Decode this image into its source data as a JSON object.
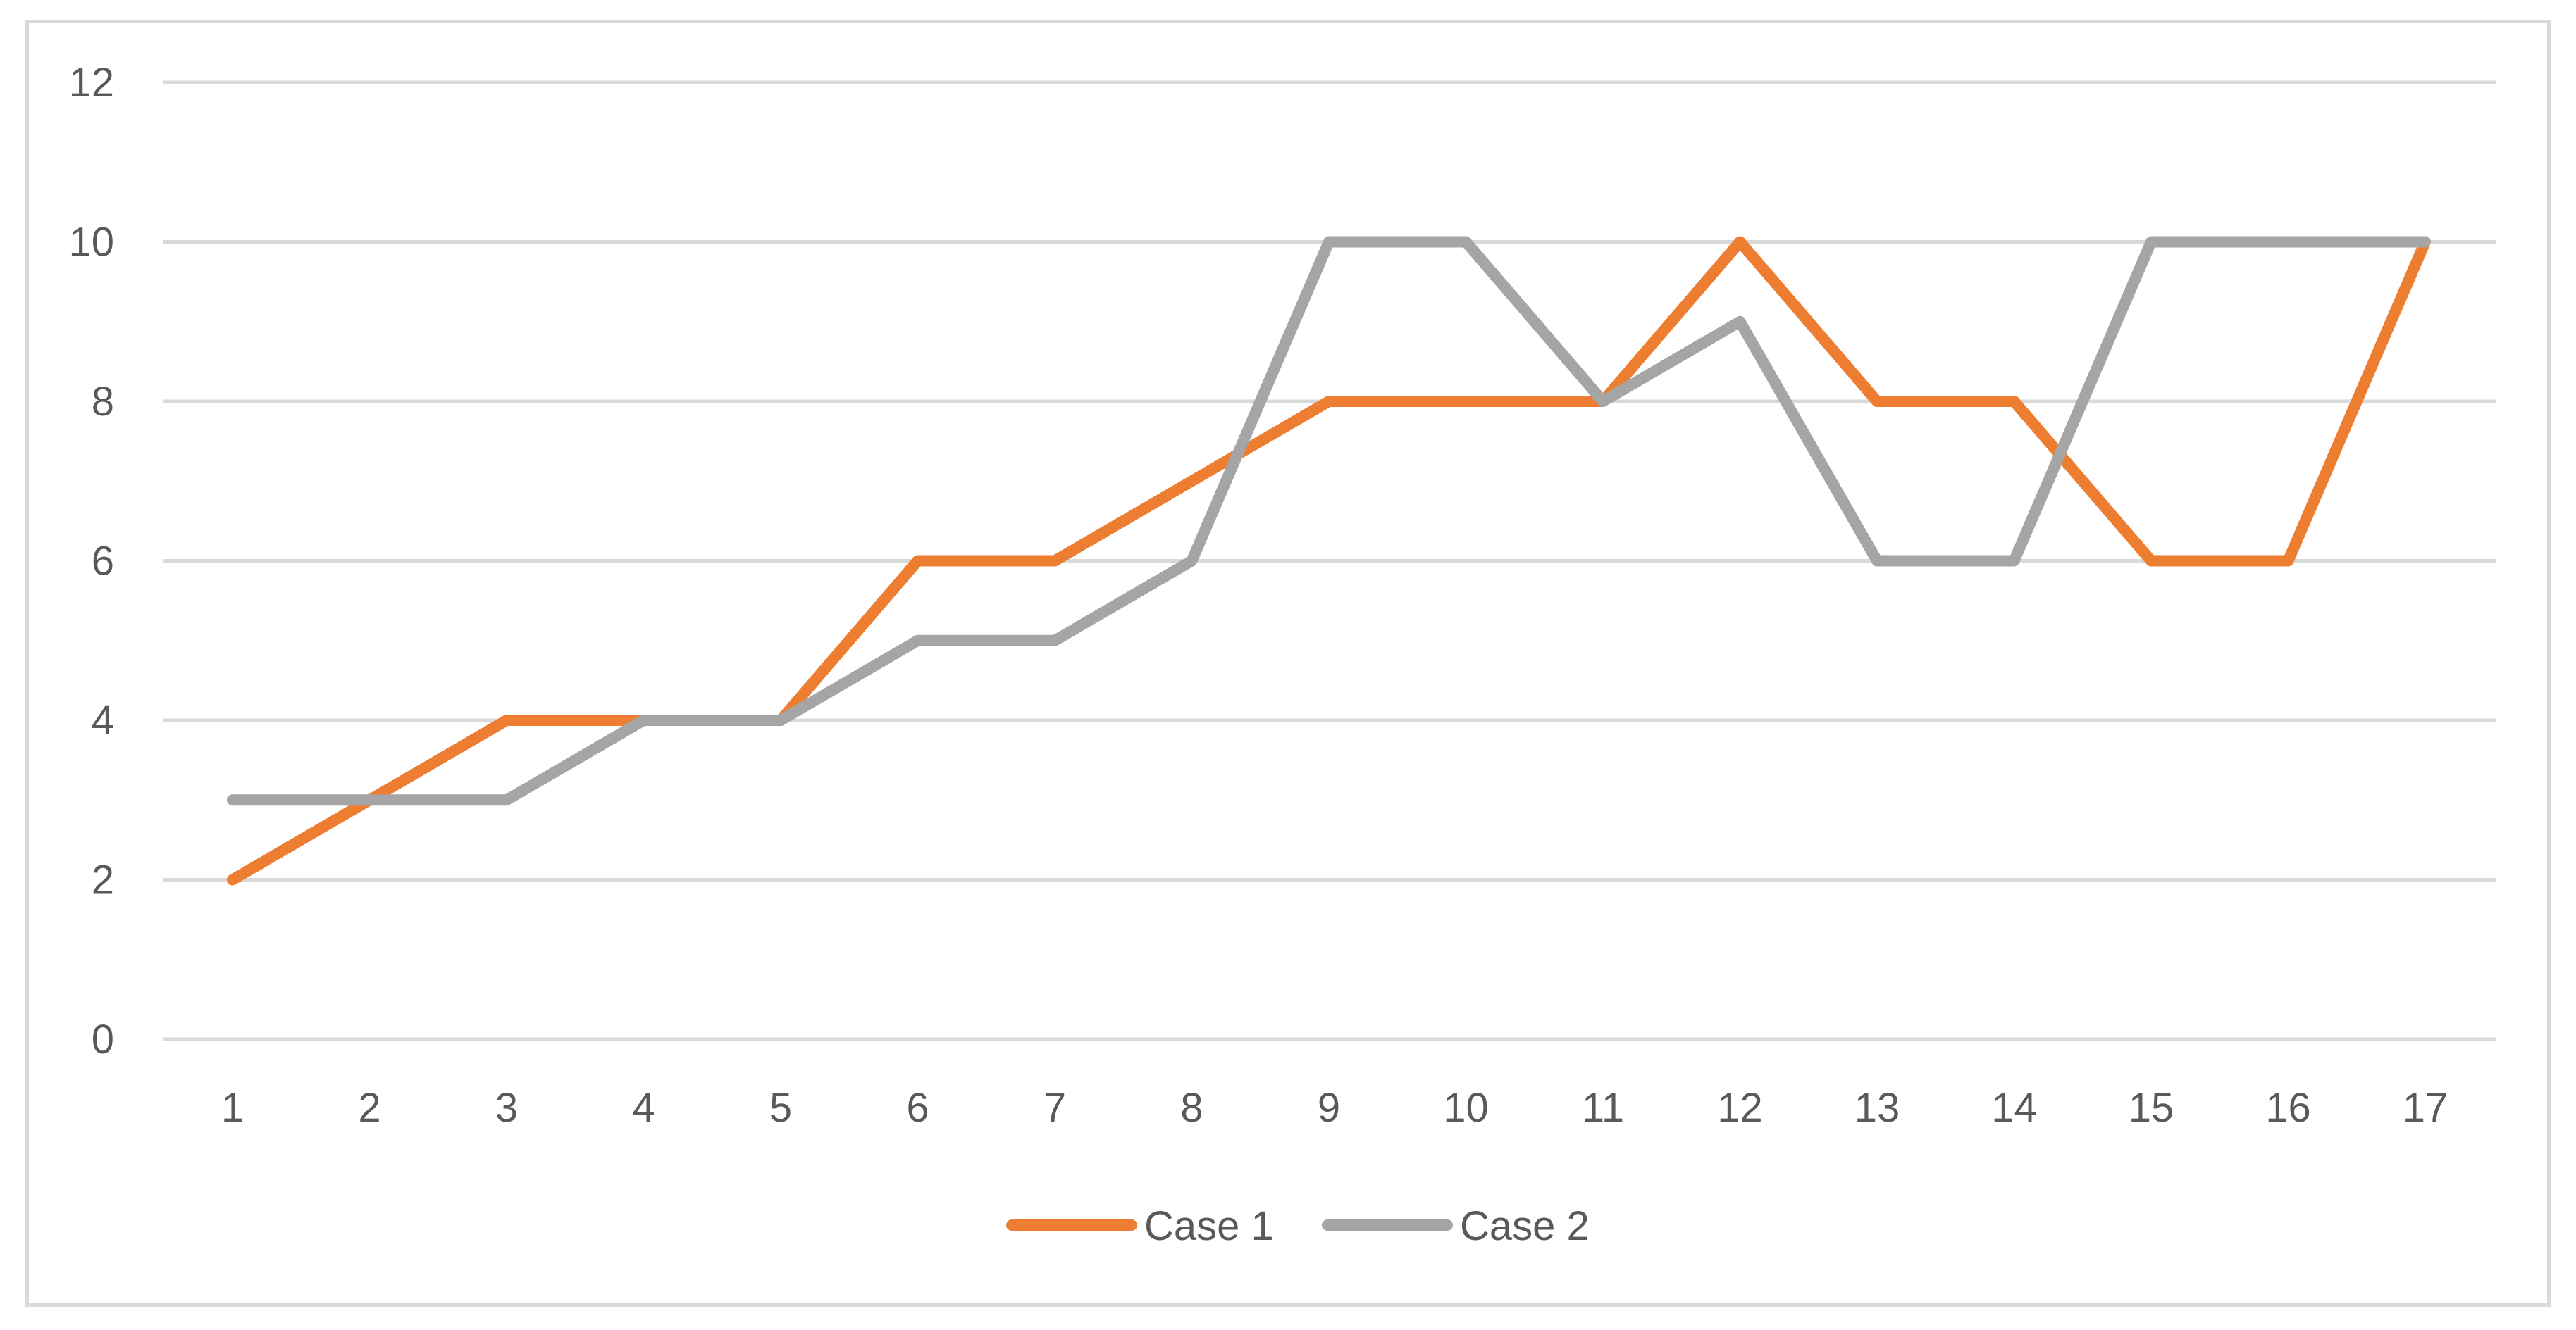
{
  "chart_data": {
    "type": "line",
    "x": [
      1,
      2,
      3,
      4,
      5,
      6,
      7,
      8,
      9,
      10,
      11,
      12,
      13,
      14,
      15,
      16,
      17
    ],
    "categories": [
      "1",
      "2",
      "3",
      "4",
      "5",
      "6",
      "7",
      "8",
      "9",
      "10",
      "11",
      "12",
      "13",
      "14",
      "15",
      "16",
      "17"
    ],
    "series": [
      {
        "name": "Case 1",
        "color": "#ED7D31",
        "values": [
          2,
          3,
          4,
          4,
          4,
          6,
          6,
          7,
          8,
          8,
          8,
          10,
          8,
          8,
          6,
          6,
          10
        ]
      },
      {
        "name": "Case 2",
        "color": "#A5A5A5",
        "values": [
          3,
          3,
          3,
          4,
          4,
          5,
          5,
          6,
          10,
          10,
          8,
          9,
          6,
          6,
          10,
          10,
          10
        ]
      }
    ],
    "title": "",
    "xlabel": "",
    "ylabel": "",
    "ylim": [
      0,
      12
    ],
    "yticks": [
      0,
      2,
      4,
      6,
      8,
      10,
      12
    ],
    "grid": true,
    "grid_color": "#d9d9d9",
    "legend_position": "bottom"
  }
}
